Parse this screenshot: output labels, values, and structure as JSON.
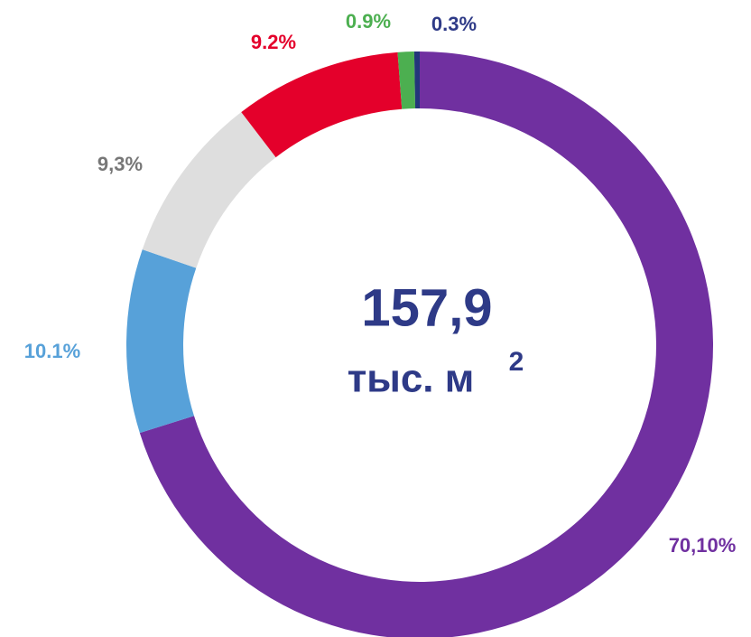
{
  "chart_data": {
    "type": "pie",
    "donut": true,
    "values": [
      70.1,
      10.1,
      9.3,
      9.2,
      0.9,
      0.3
    ],
    "value_labels": [
      "70,10%",
      "10.1%",
      "9,3%",
      "9.2%",
      "0.9%",
      "0.3%"
    ],
    "colors": [
      "#7030a0",
      "#57a1d9",
      "#dedede",
      "#e4002b",
      "#4caf50",
      "#23367a"
    ],
    "label_colors": [
      "#7030a0",
      "#57a1d9",
      "#777777",
      "#e4002b",
      "#4caf50",
      "#2e3a87"
    ],
    "center_value": "157,9",
    "center_unit": "тыс. м",
    "center_sup": "2"
  }
}
